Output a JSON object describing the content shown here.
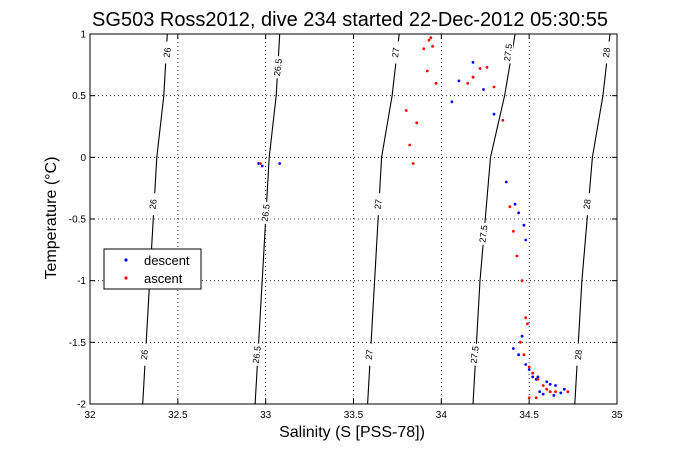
{
  "chart_data": {
    "type": "scatter",
    "title": "SG503 Ross2012, dive 234 started 22-Dec-2012 05:30:55",
    "xlabel": "Salinity (S [PSS-78])",
    "ylabel": "Temperature (°C)",
    "xlim": [
      32,
      35
    ],
    "ylim": [
      -2,
      1
    ],
    "xticks": [
      32,
      32.5,
      33,
      33.5,
      34,
      34.5,
      35
    ],
    "xtick_labels": [
      "32",
      "32.5",
      "33",
      "33.5",
      "34",
      "34.5",
      "35"
    ],
    "yticks": [
      -2,
      -1.5,
      -1,
      -0.5,
      0,
      0.5,
      1
    ],
    "ytick_labels": [
      "-2",
      "-1.5",
      "-1",
      "-0.5",
      "0",
      "0.5",
      "1"
    ],
    "grid": true,
    "legend": {
      "placement": "center-left",
      "entries": [
        "descent",
        "ascent"
      ]
    },
    "colors": {
      "descent": "#0000ff",
      "ascent": "#ff0000",
      "contour": "#000000"
    },
    "density_contours": [
      {
        "label": "26",
        "points": [
          [
            32.3,
            -2
          ],
          [
            32.34,
            -1
          ],
          [
            32.38,
            0
          ],
          [
            32.42,
            0.5
          ],
          [
            32.44,
            1
          ]
        ],
        "label_positions": [
          [
            32.31,
            -1.6
          ],
          [
            32.36,
            -0.38
          ],
          [
            32.44,
            0.85
          ]
        ]
      },
      {
        "label": "26.5",
        "points": [
          [
            32.94,
            -2
          ],
          [
            32.98,
            -1
          ],
          [
            33.02,
            0
          ],
          [
            33.06,
            0.5
          ],
          [
            33.08,
            1
          ]
        ],
        "label_positions": [
          [
            32.95,
            -1.6
          ],
          [
            33.0,
            -0.45
          ],
          [
            33.07,
            0.73
          ]
        ]
      },
      {
        "label": "27",
        "points": [
          [
            33.58,
            -2
          ],
          [
            33.62,
            -1
          ],
          [
            33.66,
            0
          ],
          [
            33.72,
            0.5
          ],
          [
            33.76,
            1
          ]
        ],
        "label_positions": [
          [
            33.59,
            -1.6
          ],
          [
            33.64,
            -0.38
          ],
          [
            33.74,
            0.85
          ]
        ]
      },
      {
        "label": "27.5",
        "points": [
          [
            34.18,
            -2
          ],
          [
            34.22,
            -1
          ],
          [
            34.28,
            0
          ],
          [
            34.36,
            0.5
          ],
          [
            34.42,
            1
          ]
        ],
        "label_positions": [
          [
            34.19,
            -1.6
          ],
          [
            34.24,
            -0.62
          ],
          [
            34.38,
            0.85
          ]
        ]
      },
      {
        "label": "28",
        "points": [
          [
            34.76,
            -2
          ],
          [
            34.8,
            -1
          ],
          [
            34.86,
            0
          ],
          [
            34.92,
            0.5
          ],
          [
            34.96,
            1
          ]
        ],
        "label_positions": [
          [
            34.78,
            -1.6
          ],
          [
            34.83,
            -0.38
          ],
          [
            34.94,
            0.85
          ]
        ]
      }
    ],
    "series": [
      {
        "name": "descent",
        "x": [
          32.96,
          32.98,
          33.08,
          34.06,
          34.1,
          34.18,
          34.24,
          34.3,
          34.37,
          34.42,
          34.44,
          34.47,
          34.48,
          34.46,
          34.41,
          34.44,
          34.48,
          34.5,
          34.52,
          34.54,
          34.55,
          34.6,
          34.62,
          34.65,
          34.7,
          34.56,
          34.58,
          34.64,
          34.68
        ],
        "y": [
          -0.05,
          -0.07,
          -0.05,
          0.45,
          0.62,
          0.77,
          0.55,
          0.35,
          -0.2,
          -0.38,
          -0.45,
          -0.55,
          -0.67,
          -1.45,
          -1.55,
          -1.6,
          -1.68,
          -1.72,
          -1.78,
          -1.8,
          -1.78,
          -1.82,
          -1.84,
          -1.85,
          -1.88,
          -1.9,
          -1.92,
          -1.93,
          -1.91
        ]
      },
      {
        "name": "ascent",
        "x": [
          32.97,
          33.8,
          33.82,
          33.84,
          33.86,
          33.9,
          33.92,
          33.93,
          33.94,
          33.95,
          33.97,
          34.15,
          34.18,
          34.22,
          34.26,
          34.3,
          34.35,
          34.39,
          34.41,
          34.43,
          34.46,
          34.48,
          34.49,
          34.45,
          34.47,
          34.5,
          34.52,
          34.55,
          34.58,
          34.6,
          34.62,
          34.65,
          34.72,
          34.5,
          34.54
        ],
        "y": [
          -0.05,
          0.38,
          0.1,
          -0.05,
          0.28,
          0.88,
          0.7,
          0.95,
          0.97,
          0.9,
          0.6,
          0.6,
          0.65,
          0.72,
          0.73,
          0.57,
          0.3,
          -0.4,
          -0.6,
          -0.8,
          -1.0,
          -1.3,
          -1.35,
          -1.5,
          -1.6,
          -1.7,
          -1.75,
          -1.8,
          -1.85,
          -1.88,
          -1.9,
          -1.9,
          -1.9,
          -1.95,
          -1.95
        ]
      }
    ]
  }
}
